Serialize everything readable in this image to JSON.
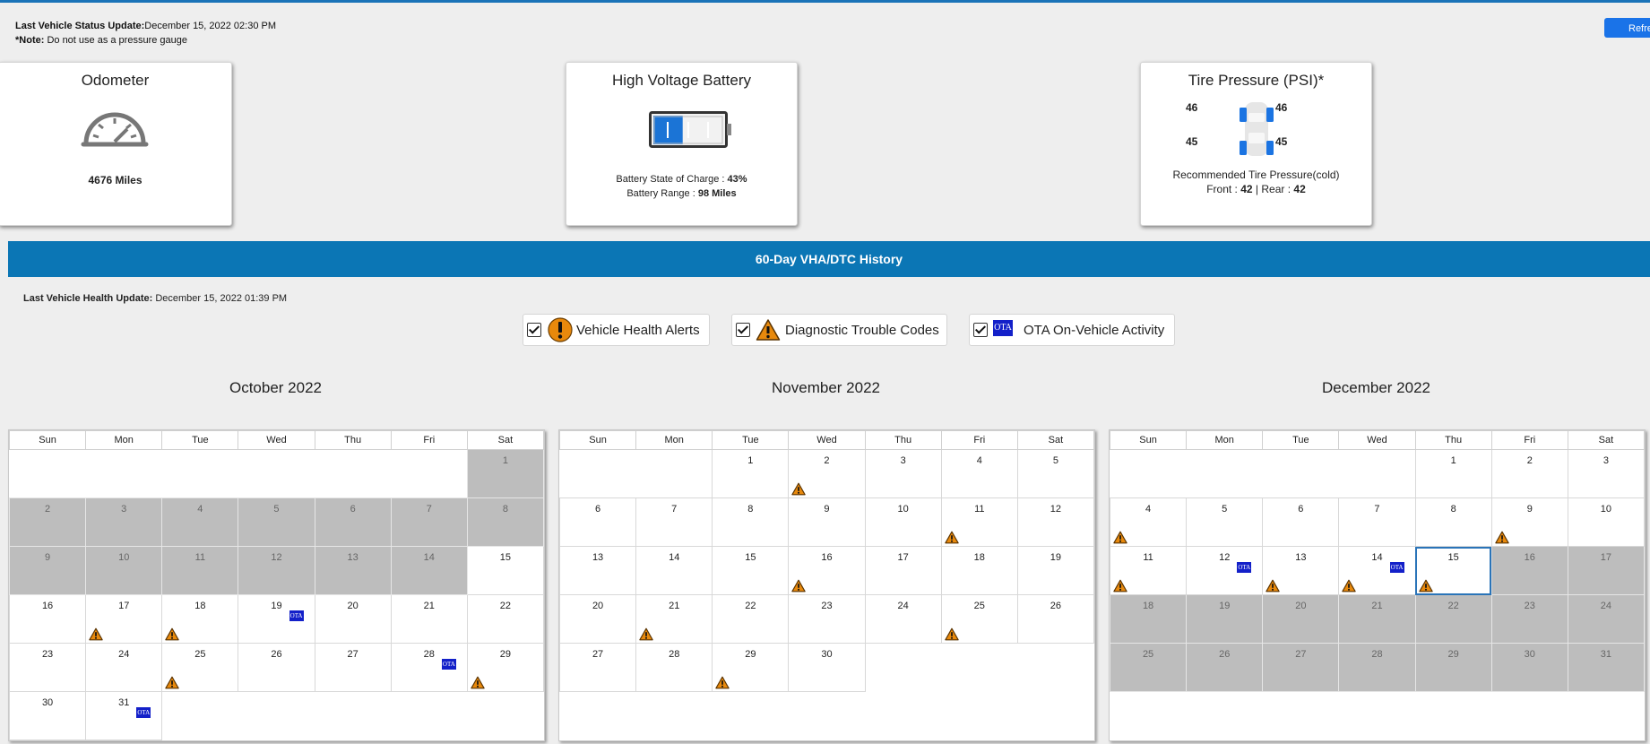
{
  "status": {
    "vehicle_update_label": "Last Vehicle Status Update:",
    "vehicle_update_value": "December 15, 2022 02:30 PM",
    "note_label": "*Note:",
    "note_text": " Do not use as a pressure gauge",
    "refresh_label": "Refresh"
  },
  "odometer": {
    "title": "Odometer",
    "value": "4676 Miles"
  },
  "battery": {
    "title": "High Voltage Battery",
    "soc_label": "Battery State of Charge : ",
    "soc_value": "43%",
    "soc_fraction": 0.43,
    "range_label": "Battery Range : ",
    "range_value": "98 Miles"
  },
  "tires": {
    "title": "Tire Pressure (PSI)*",
    "front_left": "46",
    "front_right": "46",
    "rear_left": "45",
    "rear_right": "45",
    "recommended": "Recommended Tire Pressure(cold)",
    "front_label": "Front : ",
    "front_value": "42",
    "separator": " | ",
    "rear_label": "Rear : ",
    "rear_value": "42"
  },
  "history": {
    "title": "60-Day VHA/DTC History",
    "health_update_label": "Last Vehicle Health Update:",
    "health_update_value": " December 15, 2022 01:39 PM",
    "legend": {
      "vha": "Vehicle Health Alerts",
      "dtc": "Diagnostic Trouble Codes",
      "ota": "OTA On-Vehicle Activity",
      "ota_icon_text": "OTA"
    }
  },
  "weekdays": [
    "Sun",
    "Mon",
    "Tue",
    "Wed",
    "Thu",
    "Fri",
    "Sat"
  ],
  "calendars": [
    {
      "title": "October 2022",
      "start_weekday": 6,
      "days": 31,
      "gray_days": [
        1,
        2,
        3,
        4,
        5,
        6,
        7,
        8,
        9,
        10,
        11,
        12,
        13,
        14
      ],
      "dtc_days": [
        17,
        18,
        25,
        29
      ],
      "ota_days": [
        19,
        28,
        31
      ],
      "today": null
    },
    {
      "title": "November 2022",
      "start_weekday": 2,
      "days": 30,
      "gray_days": [],
      "dtc_days": [
        2,
        11,
        16,
        21,
        25,
        29
      ],
      "ota_days": [],
      "today": null
    },
    {
      "title": "December 2022",
      "start_weekday": 4,
      "days": 31,
      "gray_days": [
        16,
        17,
        18,
        19,
        20,
        21,
        22,
        23,
        24,
        25,
        26,
        27,
        28,
        29,
        30,
        31
      ],
      "dtc_days": [
        4,
        9,
        11,
        13,
        14,
        15
      ],
      "ota_days": [
        12,
        14
      ],
      "today": 15
    }
  ],
  "colors": {
    "accent_blue": "#0b76b5",
    "ota_blue": "#1320c9",
    "warning_orange": "#e8890c"
  }
}
